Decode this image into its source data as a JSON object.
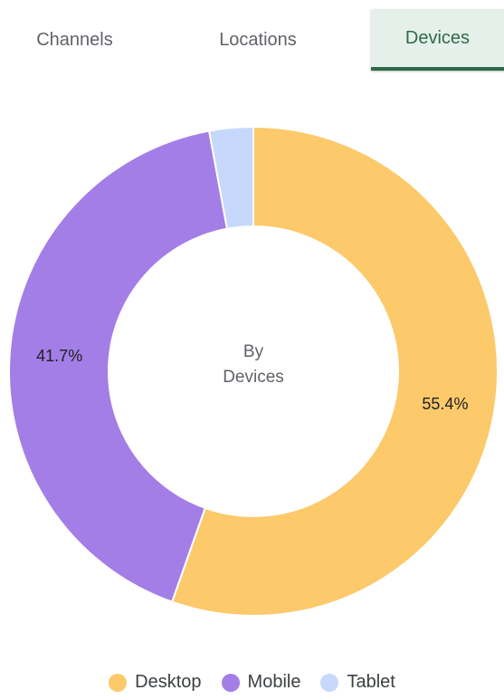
{
  "tabs": [
    {
      "label": "Channels",
      "active": false
    },
    {
      "label": "Locations",
      "active": false
    },
    {
      "label": "Devices",
      "active": true
    }
  ],
  "chart_data": {
    "type": "pie",
    "variant": "donut",
    "center_label": [
      "By",
      "Devices"
    ],
    "categories": [
      "Desktop",
      "Mobile",
      "Tablet"
    ],
    "values": [
      55.4,
      41.7,
      2.9
    ],
    "value_labels": [
      "55.4%",
      "41.7%",
      ""
    ],
    "colors": [
      "#fcc96b",
      "#a37ee6",
      "#c6d8fc"
    ],
    "legend": "bottom",
    "start": "12 o'clock, clockwise"
  }
}
